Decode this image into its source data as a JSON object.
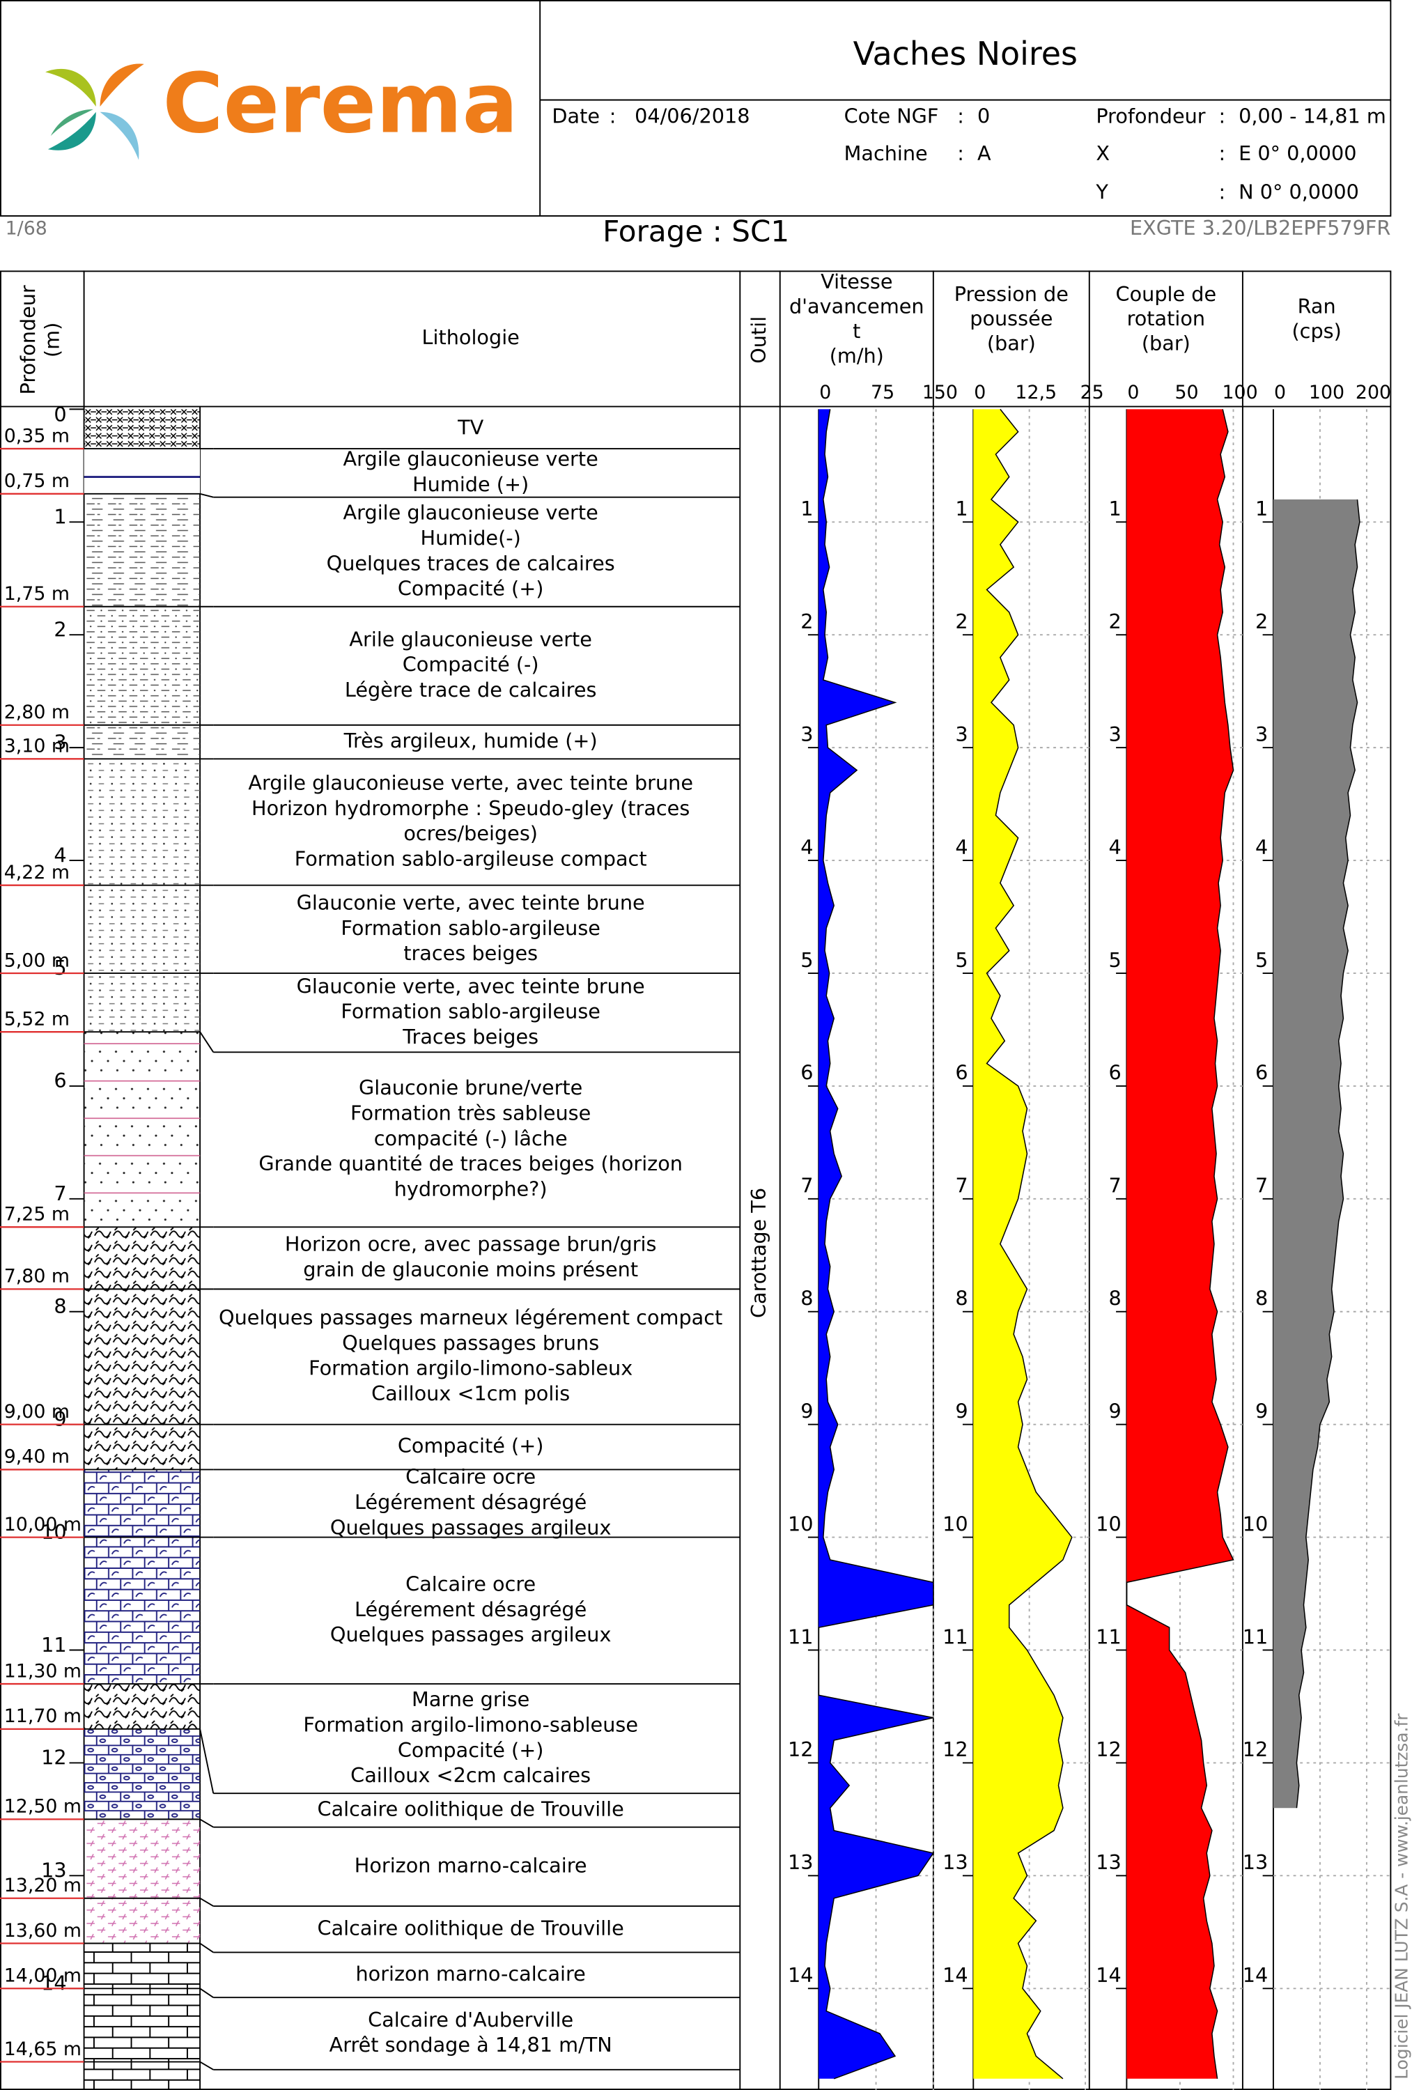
{
  "header": {
    "logo": "Cerema",
    "title": "Vaches Noires",
    "fields": [
      {
        "label": "Date",
        "sep": ":",
        "value": "04/06/2018"
      },
      {
        "label": "Cote NGF",
        "sep": ":",
        "value": "0"
      },
      {
        "label": "Machine",
        "sep": ":",
        "value": "A"
      },
      {
        "label": "Profondeur",
        "sep": ":",
        "value": "0,00 - 14,81 m"
      },
      {
        "label": "X",
        "sep": ":",
        "value": "E 0° 0,0000"
      },
      {
        "label": "Y",
        "sep": ":",
        "value": "N 0° 0,0000"
      }
    ],
    "page": "1/68",
    "borehole": "Forage : SC1",
    "software_version": "EXGTE 3.20/LB2EPF579FR"
  },
  "credit": "Logiciel JEAN LUTZ S.A - www.jeanlutzsa.fr",
  "lithology": {
    "depth_header": [
      "Profondeur",
      "(m)"
    ],
    "header": "Lithologie",
    "depth_lim": [
      0,
      14.9
    ],
    "depth_ticks": [
      0,
      1,
      2,
      3,
      4,
      5,
      6,
      7,
      8,
      9,
      10,
      11,
      12,
      13,
      14
    ],
    "boundaries": [
      {
        "value": 0.35,
        "label": "0,35 m"
      },
      {
        "value": 0.75,
        "label": "0,75 m"
      },
      {
        "value": 1.75,
        "label": "1,75 m"
      },
      {
        "value": 2.8,
        "label": "2,80 m"
      },
      {
        "value": 3.1,
        "label": "3,10 m"
      },
      {
        "value": 4.22,
        "label": "4,22 m"
      },
      {
        "value": 5.0,
        "label": "5,00 m"
      },
      {
        "value": 5.52,
        "label": "5,52 m"
      },
      {
        "value": 7.25,
        "label": "7,25 m"
      },
      {
        "value": 7.8,
        "label": "7,80 m"
      },
      {
        "value": 9.0,
        "label": "9,00 m"
      },
      {
        "value": 9.4,
        "label": "9,40 m"
      },
      {
        "value": 10.0,
        "label": "10,00 m"
      },
      {
        "value": 11.3,
        "label": "11,30 m"
      },
      {
        "value": 11.7,
        "label": "11,70 m"
      },
      {
        "value": 12.5,
        "label": "12,50 m"
      },
      {
        "value": 13.2,
        "label": "13,20 m"
      },
      {
        "value": 13.6,
        "label": "13,60 m"
      },
      {
        "value": 14.0,
        "label": "14,00 m"
      },
      {
        "value": 14.65,
        "label": "14,65 m"
      }
    ],
    "descriptions": [
      [
        "TV"
      ],
      [
        "Argile glauconieuse verte",
        "Humide (+)"
      ],
      [
        "Argile glauconieuse verte",
        "Humide(-)",
        "Quelques traces de calcaires",
        "Compacité (+)"
      ],
      [
        "Arile glauconieuse verte",
        "Compacité (-)",
        "Légère trace de calcaires"
      ],
      [
        "Très argileux, humide (+)"
      ],
      [
        "Argile glauconieuse verte, avec teinte brune",
        "Horizon hydromorphe : Speudo-gley (traces",
        "ocres/beiges)",
        "Formation sablo-argileuse compact"
      ],
      [
        "Glauconie verte, avec teinte brune",
        "Formation sablo-argileuse",
        "traces beiges"
      ],
      [
        "Glauconie verte, avec teinte brune",
        "Formation sablo-argileuse",
        "Traces beiges"
      ],
      [
        "Glauconie brune/verte",
        "Formation très sableuse",
        "compacité (-) lâche",
        "Grande quantité de traces beiges (horizon",
        "hydromorphe?)"
      ],
      [
        "Horizon ocre, avec passage brun/gris",
        "grain de glauconie moins présent"
      ],
      [
        "Quelques passages marneux légérement compact",
        "Quelques passages bruns",
        "Formation argilo-limono-sableux",
        "Cailloux <1cm polis"
      ],
      [
        "Compacité (+)"
      ],
      [
        "Calcaire ocre",
        "Légérement désagrégé",
        "Quelques passages argileux"
      ],
      [
        "Calcaire ocre",
        "Légérement désagrégé",
        "Quelques passages argileux"
      ],
      [
        "Marne grise",
        "Formation argilo-limono-sableuse",
        "Compacité (+)",
        "Cailloux <2cm calcaires"
      ],
      [
        "Calcaire oolithique de Trouville"
      ],
      [
        "Horizon marno-calcaire"
      ],
      [
        "Calcaire oolithique de Trouville"
      ],
      [
        "horizon marno-calcaire"
      ],
      [
        "Calcaire d'Auberville",
        "Arrêt sondage à 14,81 m/TN"
      ]
    ]
  },
  "tool": {
    "header": "Outil",
    "label": "Carottage T6"
  },
  "chart_data": [
    {
      "type": "area",
      "title": [
        "Vitesse",
        "d'avancemen",
        "t",
        "(m/h)"
      ],
      "color": "#0000ff",
      "xlim": [
        0,
        14.9
      ],
      "xticks": [
        1,
        2,
        3,
        4,
        5,
        6,
        7,
        8,
        9,
        10,
        11,
        12,
        13,
        14
      ],
      "ylim": [
        0,
        150
      ],
      "yticks": [
        0,
        75,
        150
      ],
      "x": [
        0,
        0.2,
        0.4,
        0.6,
        0.8,
        1,
        1.2,
        1.4,
        1.6,
        1.8,
        2,
        2.2,
        2.4,
        2.6,
        2.8,
        3,
        3.2,
        3.4,
        3.6,
        3.8,
        4,
        4.2,
        4.4,
        4.6,
        4.8,
        5,
        5.2,
        5.4,
        5.6,
        5.8,
        6,
        6.2,
        6.4,
        6.6,
        6.8,
        7,
        7.2,
        7.4,
        7.6,
        7.8,
        8,
        8.2,
        8.4,
        8.6,
        8.8,
        9,
        9.2,
        9.4,
        9.6,
        9.8,
        10,
        10.2,
        10.4,
        10.6,
        10.8,
        11,
        11.2,
        11.4,
        11.6,
        11.8,
        12,
        12.2,
        12.4,
        12.6,
        12.8,
        13,
        13.2,
        13.4,
        13.6,
        13.8,
        14,
        14.2,
        14.4,
        14.6,
        14.8
      ],
      "values": [
        15,
        10,
        8,
        12,
        6,
        10,
        8,
        14,
        6,
        10,
        8,
        12,
        6,
        100,
        10,
        12,
        50,
        15,
        10,
        8,
        6,
        12,
        20,
        10,
        8,
        14,
        10,
        20,
        12,
        15,
        10,
        25,
        15,
        20,
        30,
        15,
        10,
        8,
        15,
        12,
        20,
        10,
        15,
        10,
        12,
        25,
        15,
        20,
        12,
        8,
        6,
        15,
        150,
        150,
        0,
        0,
        0,
        0,
        150,
        20,
        15,
        40,
        15,
        20,
        150,
        130,
        20,
        15,
        10,
        8,
        15,
        10,
        80,
        100,
        20
      ]
    },
    {
      "type": "area",
      "title": [
        "Pression de",
        "poussée",
        "(bar)"
      ],
      "color": "#ffff00",
      "xlim": [
        0,
        14.9
      ],
      "xticks": [
        1,
        2,
        3,
        4,
        5,
        6,
        7,
        8,
        9,
        10,
        11,
        12,
        13,
        14
      ],
      "ylim": [
        0,
        25
      ],
      "yticks": [
        0,
        {
          "value": 12.5,
          "label": "12,5"
        },
        25
      ],
      "x": [
        0,
        0.2,
        0.4,
        0.6,
        0.8,
        1,
        1.2,
        1.4,
        1.6,
        1.8,
        2,
        2.2,
        2.4,
        2.6,
        2.8,
        3,
        3.2,
        3.4,
        3.6,
        3.8,
        4,
        4.2,
        4.4,
        4.6,
        4.8,
        5,
        5.2,
        5.4,
        5.6,
        5.8,
        6,
        6.2,
        6.4,
        6.6,
        6.8,
        7,
        7.2,
        7.4,
        7.6,
        7.8,
        8,
        8.2,
        8.4,
        8.6,
        8.8,
        9,
        9.2,
        9.4,
        9.6,
        9.8,
        10,
        10.2,
        10.4,
        10.6,
        10.8,
        11,
        11.2,
        11.4,
        11.6,
        11.8,
        12,
        12.2,
        12.4,
        12.6,
        12.8,
        13,
        13.2,
        13.4,
        13.6,
        13.8,
        14,
        14.2,
        14.4,
        14.6,
        14.8
      ],
      "values": [
        6,
        10,
        5,
        8,
        4,
        10,
        6,
        9,
        3,
        8,
        10,
        6,
        8,
        4,
        9,
        10,
        8,
        6,
        5,
        10,
        8,
        6,
        9,
        5,
        8,
        3,
        6,
        4,
        7,
        3,
        10,
        12,
        11,
        12,
        11,
        10,
        8,
        6,
        9,
        12,
        10,
        9,
        11,
        12,
        10,
        11,
        10,
        12,
        14,
        18,
        22,
        20,
        14,
        8,
        8,
        12,
        15,
        18,
        20,
        19,
        20,
        19,
        20,
        18,
        10,
        12,
        9,
        14,
        10,
        12,
        11,
        15,
        12,
        14,
        20
      ]
    },
    {
      "type": "area",
      "title": [
        "Couple de",
        "rotation",
        "(bar)"
      ],
      "color": "#ff0000",
      "xlim": [
        0,
        14.9
      ],
      "xticks": [
        1,
        2,
        3,
        4,
        5,
        6,
        7,
        8,
        9,
        10,
        11,
        12,
        13,
        14
      ],
      "ylim": [
        0,
        100
      ],
      "yticks": [
        0,
        50,
        100
      ],
      "x": [
        0,
        0.2,
        0.4,
        0.6,
        0.8,
        1,
        1.2,
        1.4,
        1.6,
        1.8,
        2,
        2.2,
        2.4,
        2.6,
        2.8,
        3,
        3.2,
        3.4,
        3.6,
        3.8,
        4,
        4.2,
        4.4,
        4.6,
        4.8,
        5,
        5.2,
        5.4,
        5.6,
        5.8,
        6,
        6.2,
        6.4,
        6.6,
        6.8,
        7,
        7.2,
        7.4,
        7.6,
        7.8,
        8,
        8.2,
        8.4,
        8.6,
        8.8,
        9,
        9.2,
        9.4,
        9.6,
        9.8,
        10,
        10.2,
        10.4,
        10.6,
        10.8,
        11,
        11.2,
        11.4,
        11.6,
        11.8,
        12,
        12.2,
        12.4,
        12.6,
        12.8,
        13,
        13.2,
        13.4,
        13.6,
        13.8,
        14,
        14.2,
        14.4,
        14.6,
        14.8
      ],
      "values": [
        90,
        95,
        88,
        92,
        85,
        90,
        87,
        92,
        88,
        90,
        85,
        88,
        90,
        92,
        95,
        97,
        100,
        92,
        90,
        88,
        90,
        86,
        88,
        85,
        88,
        86,
        84,
        82,
        85,
        83,
        85,
        80,
        82,
        84,
        82,
        85,
        80,
        82,
        80,
        78,
        85,
        80,
        82,
        84,
        80,
        88,
        95,
        90,
        85,
        88,
        90,
        100,
        0,
        0,
        40,
        40,
        55,
        60,
        65,
        70,
        72,
        75,
        70,
        80,
        75,
        78,
        72,
        75,
        80,
        82,
        78,
        85,
        80,
        82,
        85
      ]
    },
    {
      "type": "area",
      "title": [
        "Ran",
        "(cps)"
      ],
      "color": "#808080",
      "xlim": [
        0,
        14.9
      ],
      "xticks": [
        1,
        2,
        3,
        4,
        5,
        6,
        7,
        8,
        9,
        10,
        11,
        12,
        13,
        14
      ],
      "ylim": [
        0,
        200
      ],
      "yticks": [
        0,
        100,
        200
      ],
      "x": [
        0,
        0.2,
        0.4,
        0.6,
        0.8,
        1,
        1.2,
        1.4,
        1.6,
        1.8,
        2,
        2.2,
        2.4,
        2.6,
        2.8,
        3,
        3.2,
        3.4,
        3.6,
        3.8,
        4,
        4.2,
        4.4,
        4.6,
        4.8,
        5,
        5.2,
        5.4,
        5.6,
        5.8,
        6,
        6.2,
        6.4,
        6.6,
        6.8,
        7,
        7.2,
        7.4,
        7.6,
        7.8,
        8,
        8.2,
        8.4,
        8.6,
        8.8,
        9,
        9.2,
        9.4,
        9.6,
        9.8,
        10,
        10.2,
        10.4,
        10.6,
        10.8,
        11,
        11.2,
        11.4,
        11.6,
        11.8,
        12,
        12.2,
        12.4,
        12.6,
        12.8,
        13,
        13.2,
        13.4,
        13.6,
        13.8,
        14,
        14.2,
        14.4,
        14.6,
        14.8
      ],
      "values": [
        null,
        null,
        null,
        null,
        180,
        185,
        175,
        180,
        170,
        175,
        165,
        175,
        170,
        180,
        170,
        165,
        175,
        160,
        165,
        155,
        160,
        150,
        160,
        150,
        160,
        150,
        145,
        150,
        140,
        145,
        140,
        145,
        140,
        150,
        145,
        150,
        140,
        135,
        130,
        125,
        130,
        120,
        125,
        115,
        120,
        100,
        95,
        85,
        80,
        75,
        70,
        75,
        70,
        65,
        70,
        60,
        65,
        55,
        60,
        55,
        50,
        55,
        50,
        null,
        null,
        null,
        null,
        null,
        null,
        null,
        null,
        null,
        null,
        null,
        null
      ]
    }
  ]
}
